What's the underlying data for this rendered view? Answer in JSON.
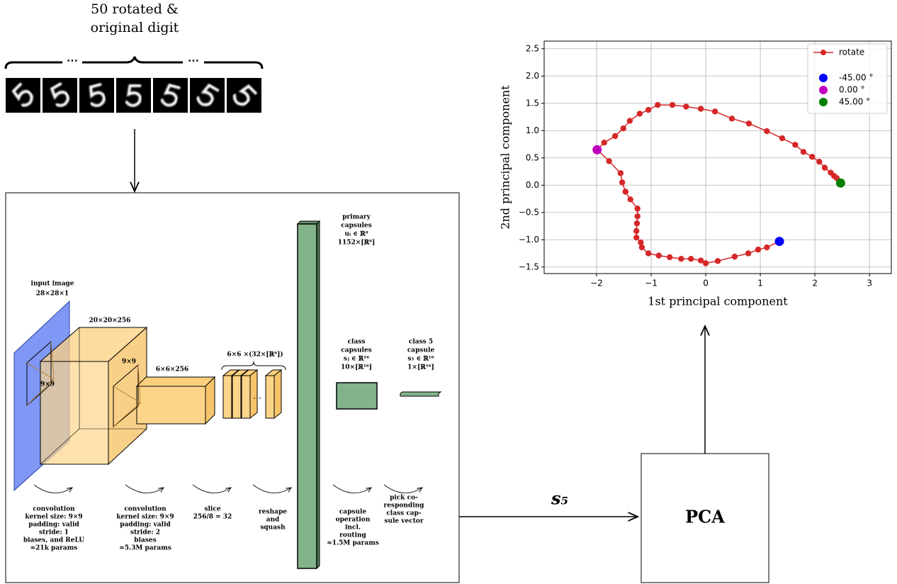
{
  "digits_caption": [
    "50 rotated &",
    "original digit"
  ],
  "ellipsis": "⋯",
  "network": {
    "input": [
      "input image",
      "28×28×1"
    ],
    "conv1": {
      "size": "20×20×256",
      "kernel": "9×9"
    },
    "conv2": {
      "kernel": "9×9",
      "size": "6×6×256"
    },
    "slices": "6×6 ×(32×[ℝ⁸])",
    "primary": [
      "primary",
      "capsules",
      "uᵢ ∈ ℝ⁸",
      "1152×[ℝ⁸]"
    ],
    "class": [
      "class",
      "capsules",
      "sⱼ ∈ ℝ¹⁶",
      "10×[ℝ¹⁶]"
    ],
    "class5": [
      "class 5",
      "capsule",
      "s₅ ∈ ℝ¹⁶",
      "1×[ℝ¹⁶]"
    ],
    "ops": [
      [
        "convolution",
        "kernel size: 9×9",
        "padding: valid",
        "stride: 1",
        "biases, and ReLU",
        "≈21k params"
      ],
      [
        "convolution",
        "kernel size: 9×9",
        "padding: valid",
        "stride: 2",
        "biases",
        "≈5.3M params"
      ],
      [
        "slice",
        "256/8 = 32"
      ],
      [
        "reshape",
        "and",
        "squash"
      ],
      [
        "capsule",
        "operation",
        "incl.",
        "routing",
        "≈1.5M params"
      ],
      [
        "pick co-",
        "responding",
        "class cap-",
        "sule vector"
      ]
    ]
  },
  "output_label": "s₅",
  "pca": "PCA",
  "chart_data": {
    "type": "line",
    "xlabel": "1st principal component",
    "ylabel": "2nd principal component",
    "xlim": [
      -2.96,
      3.4
    ],
    "ylim": [
      -1.62,
      2.64
    ],
    "xticks": [
      {
        "value": -2,
        "label": "−2"
      },
      {
        "value": -1,
        "label": "−1"
      },
      0,
      1,
      2,
      3
    ],
    "yticks": [
      {
        "value": -1.5,
        "label": "−1.5"
      },
      {
        "value": -1,
        "label": "−1.0"
      },
      {
        "value": -0.5,
        "label": "−0.5"
      },
      {
        "value": 0,
        "label": "0.0"
      },
      0.5,
      {
        "value": 1,
        "label": "1.0"
      },
      1.5,
      {
        "value": 2,
        "label": "2.0"
      },
      2.5
    ],
    "grid": true,
    "legend": "upper right",
    "series": [
      {
        "name": "rotate",
        "color": "#d62728",
        "x": [
          1.35,
          1.12,
          0.96,
          0.78,
          0.53,
          0.22,
          0.0,
          -0.09,
          -0.27,
          -0.45,
          -0.66,
          -0.86,
          -1.05,
          -1.17,
          -1.19,
          -1.27,
          -1.27,
          -1.26,
          -1.25,
          -1.25,
          -1.38,
          -1.47,
          -1.53,
          -1.56,
          -1.77,
          -1.99,
          -1.86,
          -1.66,
          -1.51,
          -1.39,
          -1.21,
          -1.05,
          -0.88,
          -0.61,
          -0.36,
          -0.09,
          0.17,
          0.48,
          0.79,
          1.12,
          1.4,
          1.64,
          1.79,
          1.95,
          2.08,
          2.18,
          2.29,
          2.35,
          2.4,
          2.47
        ],
        "y": [
          -1.03,
          -1.14,
          -1.18,
          -1.25,
          -1.31,
          -1.39,
          -1.43,
          -1.38,
          -1.35,
          -1.35,
          -1.32,
          -1.29,
          -1.25,
          -1.14,
          -1.05,
          -0.96,
          -0.84,
          -0.7,
          -0.57,
          -0.43,
          -0.26,
          -0.12,
          0.05,
          0.22,
          0.44,
          0.65,
          0.78,
          0.9,
          1.04,
          1.18,
          1.31,
          1.38,
          1.47,
          1.47,
          1.44,
          1.4,
          1.35,
          1.22,
          1.13,
          0.99,
          0.86,
          0.74,
          0.61,
          0.52,
          0.43,
          0.32,
          0.23,
          0.17,
          0.13,
          0.04
        ]
      }
    ],
    "markers": [
      {
        "name": "-45.00 °",
        "color": "#0000ff",
        "x": 1.35,
        "y": -1.03
      },
      {
        "name": "0.00 °",
        "color": "#bf00bf",
        "x": -1.99,
        "y": 0.65
      },
      {
        "name": "45.00 °",
        "color": "#008000",
        "x": 2.47,
        "y": 0.04
      }
    ]
  }
}
